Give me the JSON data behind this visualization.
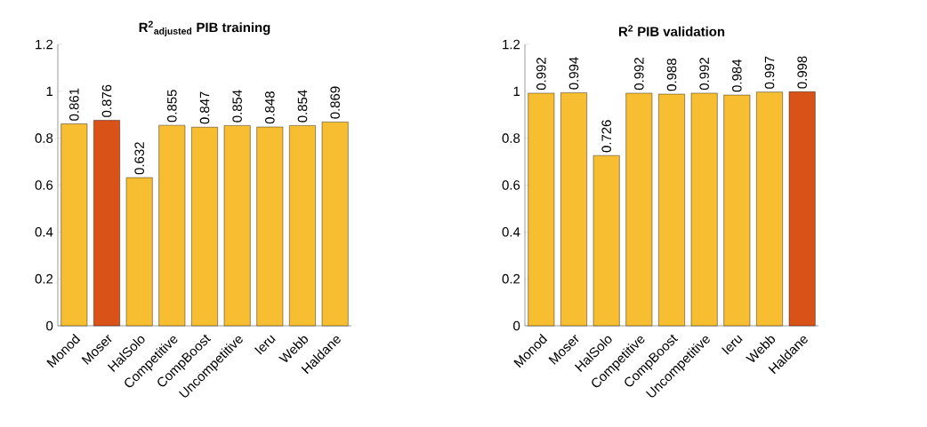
{
  "chart_data": [
    {
      "type": "bar",
      "title": "R$^{2}$$_{adjusted}$ PIB training",
      "categories": [
        "Monod",
        "Moser",
        "HalSolo",
        "Competitive",
        "CompBoost",
        "Uncompetitive",
        "Ieru",
        "Webb",
        "Haldane"
      ],
      "values": [
        0.861,
        0.876,
        0.632,
        0.855,
        0.847,
        0.854,
        0.848,
        0.854,
        0.869
      ],
      "colors": [
        "#f6be30",
        "#d95319",
        "#f6be30",
        "#f6be30",
        "#f6be30",
        "#f6be30",
        "#f6be30",
        "#f6be30",
        "#f6be30"
      ],
      "ylim": [
        0,
        1.2
      ],
      "yticks": [
        0,
        0.2,
        0.4,
        0.6,
        0.8,
        1,
        1.2
      ],
      "data_labels": true
    },
    {
      "type": "bar",
      "title": "R$^{2}$ PIB validation",
      "categories": [
        "Monod",
        "Moser",
        "HalSolo",
        "Competitive",
        "CompBoost",
        "Uncompetitive",
        "Ieru",
        "Webb",
        "Haldane"
      ],
      "values": [
        0.992,
        0.994,
        0.726,
        0.992,
        0.988,
        0.992,
        0.984,
        0.997,
        0.998
      ],
      "colors": [
        "#f6be30",
        "#f6be30",
        "#f6be30",
        "#f6be30",
        "#f6be30",
        "#f6be30",
        "#f6be30",
        "#f6be30",
        "#d95319"
      ],
      "ylim": [
        0,
        1.2
      ],
      "yticks": [
        0,
        0.2,
        0.4,
        0.6,
        0.8,
        1,
        1.2
      ],
      "data_labels": true
    }
  ]
}
